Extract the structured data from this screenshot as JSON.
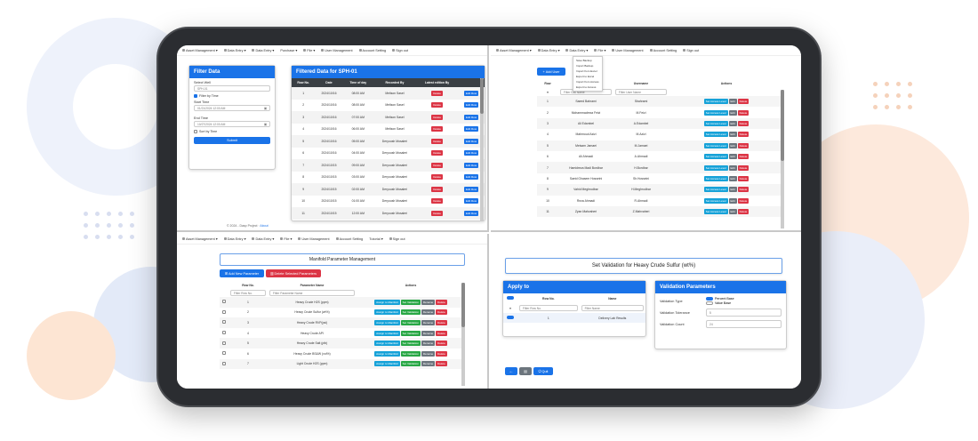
{
  "q1": {
    "nav": [
      "Asset Management",
      "Data Entry",
      "Data Entry",
      "Purchase",
      "File",
      "User Management",
      "Account Setting",
      "Sign out"
    ],
    "filter": {
      "title": "Filter Data",
      "select_well_label": "Select Well",
      "select_well_value": "SPH-01",
      "filter_by_time": "Filter by Time",
      "start_label": "Start Time",
      "start_value": "01/21/2024 12:00 AM",
      "end_label": "End Time",
      "end_value": "10/27/2024 12:00 AM",
      "sort_label": "Sort by Time",
      "submit": "Submit"
    },
    "table": {
      "title": "Filtered Data for SPH-01",
      "headers": [
        "Row No.",
        "Date",
        "Time of day",
        "Recorded By",
        "Latest edition By"
      ],
      "rows": [
        [
          "1",
          "2024/10/16",
          "08:00 AM",
          "Melison Sasel",
          "Delete",
          "Edit Row"
        ],
        [
          "2",
          "2024/10/16",
          "08:00 AM",
          "Melison Sasel",
          "Delete",
          "Edit Row"
        ],
        [
          "3",
          "2024/10/16",
          "07:00 AM",
          "Melison Sasel",
          "Delete",
          "Edit Row"
        ],
        [
          "4",
          "2024/10/16",
          "06:00 AM",
          "Melison Sasel",
          "Delete",
          "Edit Row"
        ],
        [
          "5",
          "2024/10/16",
          "05:00 AM",
          "Deryoush Mosaleri",
          "Delete",
          "Edit Row"
        ],
        [
          "6",
          "2024/10/16",
          "04:00 AM",
          "Deryoush Mosaleri",
          "Delete",
          "Edit Row"
        ],
        [
          "7",
          "2024/10/15",
          "09:00 AM",
          "Deryoush Mosaleri",
          "Delete",
          "Edit Row"
        ],
        [
          "8",
          "2024/10/15",
          "03:00 AM",
          "Deryoush Mosaleri",
          "Delete",
          "Edit Row"
        ],
        [
          "9",
          "2024/10/15",
          "02:00 AM",
          "Deryoush Mosaleri",
          "Delete",
          "Edit Row"
        ],
        [
          "10",
          "2024/10/15",
          "01:00 AM",
          "Deryoush Mosaleri",
          "Delete",
          "Edit Row"
        ],
        [
          "11",
          "2024/10/15",
          "12:00 AM",
          "Deryoush Mosaleri",
          "Delete",
          "Edit Row"
        ]
      ]
    },
    "footer": "© 2024 - Dasp Project",
    "footer_link": "About"
  },
  "q2": {
    "nav": [
      "Asset Management",
      "Data Entry",
      "Data Entry",
      "File",
      "User Management",
      "Account Setting",
      "Sign out"
    ],
    "file_menu": [
      "Save Backup",
      "Import Backup",
      "Import from Excel",
      "Export to Excel",
      "Import from Access",
      "Export to Access"
    ],
    "add_user": "Add User",
    "headers": [
      "Row",
      "Full Name",
      "Username",
      "Actions"
    ],
    "filters": [
      "Filter Cell Name",
      "Filter User Name"
    ],
    "rows": [
      [
        "1",
        "Saeed Bahrami",
        "Sbahrami"
      ],
      [
        "2",
        "Mohammadreza Feizi",
        "M.Feizi"
      ],
      [
        "3",
        "Ali Edambel",
        "A.Edambel"
      ],
      [
        "4",
        "Mahmoud Azizi",
        "M.Azizi"
      ],
      [
        "5",
        "Meisam Jamaei",
        "M.Jamaei"
      ],
      [
        "6",
        "Ali Ahmadi",
        "A.Ahmadi"
      ],
      [
        "7",
        "Hamidreza Madi Bordbar",
        "H.Bordbar"
      ],
      [
        "8",
        "Saeid Ghasem Hosseini",
        "Sh.Hosseini"
      ],
      [
        "9",
        "Vahid Meghrodbar",
        "H.Meghrodbar"
      ],
      [
        "10",
        "Reza Ahmadi",
        "R.Ahmadi"
      ],
      [
        "11",
        "Zyan Mahvaheri",
        "Z.Mahvaheri"
      ]
    ],
    "actions": [
      "Set Access Level",
      "Edit",
      "Delete"
    ]
  },
  "q3": {
    "nav": [
      "Asset Management",
      "Data Entry",
      "Data Entry",
      "File",
      "User Management",
      "Account Setting",
      "Tutorial",
      "Sign out"
    ],
    "title": "Manifold Parameter Management",
    "add_btn": "Add New Parameter",
    "delete_btn": "Delete Selected Parameters",
    "headers": [
      "Row No.",
      "Parameter Name",
      "Actions"
    ],
    "filters": [
      "Filter Row No.",
      "Filter Parameter Name"
    ],
    "rows": [
      [
        "1",
        "Heavy Crude H2S (ppm)"
      ],
      [
        "2",
        "Heavy Crude Sulfur (wt%)"
      ],
      [
        "3",
        "Heavy Crude RVP(psi)"
      ],
      [
        "4",
        "Heavy Crude API"
      ],
      [
        "5",
        "Heavy Crude Salt (ptb)"
      ],
      [
        "6",
        "Heavy Crude BS&W (vol%)"
      ],
      [
        "7",
        "Light Crude H2S (ppm)"
      ]
    ],
    "actions": [
      "Assign to Manifold",
      "Set Validation",
      "Rename",
      "Delete"
    ]
  },
  "q4": {
    "title": "Set Validation for Heavy Crude Sulfur (wt%)",
    "apply_title": "Apply to",
    "apply_headers": [
      "Row No.",
      "Name"
    ],
    "apply_filters": [
      "Filter Row No.",
      "Filter Name"
    ],
    "apply_rows": [
      [
        "1",
        "Delivery Lab Results"
      ]
    ],
    "params_title": "Validation Parameters",
    "type_label": "Validation Type",
    "type_options": [
      "Percent Base",
      "Value Base"
    ],
    "tolerance_label": "Validation Tolerance",
    "tolerance_value": "5",
    "count_label": "Validation Count",
    "count_value": "24",
    "quit": "Quit"
  }
}
